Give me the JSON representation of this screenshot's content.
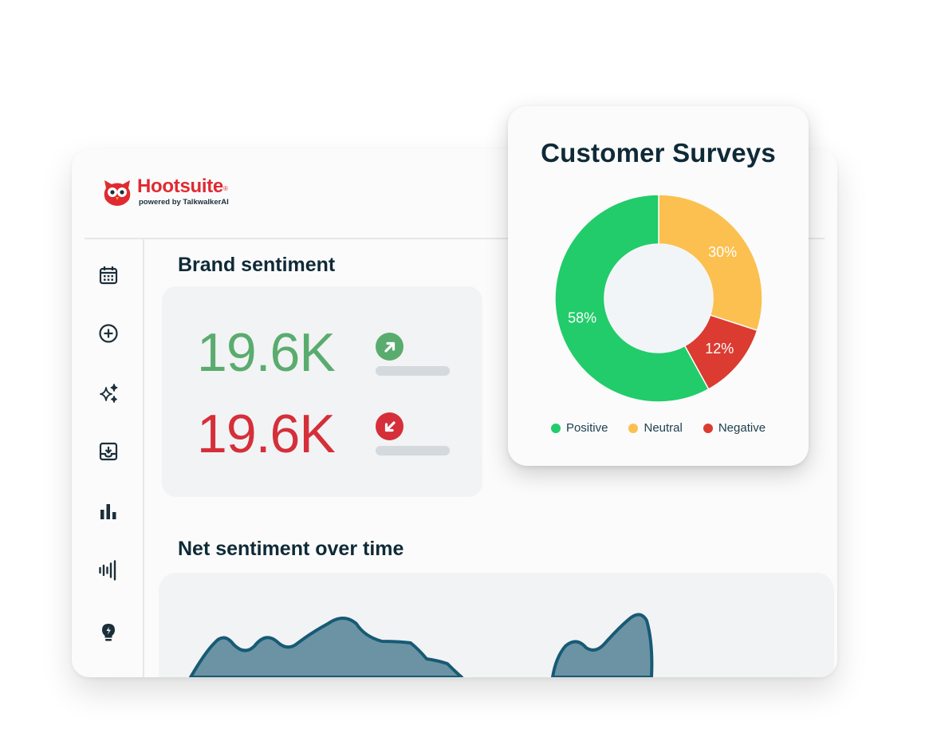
{
  "brand": {
    "name": "Hootsuite",
    "registered": "®",
    "subtitle": "powered by TalkwalkerAI",
    "color": "#e02a32"
  },
  "sidebar": {
    "items": [
      {
        "name": "calendar-icon"
      },
      {
        "name": "add-circle-icon"
      },
      {
        "name": "sparkles-icon"
      },
      {
        "name": "inbox-icon"
      },
      {
        "name": "bar-chart-icon"
      },
      {
        "name": "listening-bars-icon"
      },
      {
        "name": "lightbulb-icon"
      }
    ]
  },
  "brand_sentiment": {
    "title": "Brand sentiment",
    "positive": {
      "value": "19.6K",
      "trend": "up",
      "color": "#5aac6e"
    },
    "negative": {
      "value": "19.6K",
      "trend": "down",
      "color": "#d52f3a"
    }
  },
  "net_sentiment": {
    "title": "Net sentiment over time",
    "fill": "#6b93a3",
    "stroke": "#175a75"
  },
  "chart_data": {
    "type": "pie",
    "title": "Customer Surveys",
    "categories": [
      "Positive",
      "Neutral",
      "Negative"
    ],
    "values": [
      58,
      30,
      12
    ],
    "labels": [
      "58%",
      "30%",
      "12%"
    ],
    "colors": [
      "#22cc6a",
      "#fbc04f",
      "#db3b31"
    ],
    "donut": true,
    "legend": "bottom"
  }
}
